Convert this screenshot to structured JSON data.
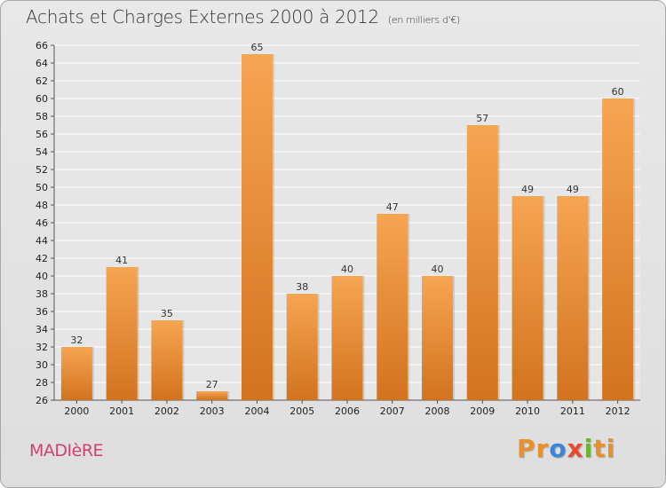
{
  "title": "Achats et Charges Externes 2000 à 2012",
  "subtitle": "(en milliers d'€)",
  "commune": "MADIèRE",
  "logo": {
    "p1": "Pr",
    "p2": "o",
    "p3": "x",
    "p4": "i",
    "p5": "ti"
  },
  "colors": {
    "bar_top": "#f6a552",
    "bar_bottom": "#d2731e",
    "grid": "#ffffff",
    "plot_bg": "#e6e6e6"
  },
  "chart_data": {
    "type": "bar",
    "title": "Achats et Charges Externes 2000 à 2012",
    "subtitle": "(en milliers d'€)",
    "categories": [
      "2000",
      "2001",
      "2002",
      "2003",
      "2004",
      "2005",
      "2006",
      "2007",
      "2008",
      "2009",
      "2010",
      "2011",
      "2012"
    ],
    "values": [
      32,
      41,
      35,
      27,
      65,
      38,
      40,
      47,
      40,
      57,
      49,
      49,
      60
    ],
    "ylim": [
      26,
      66
    ],
    "ytick_step": 2,
    "grid": true,
    "data_labels": true
  }
}
